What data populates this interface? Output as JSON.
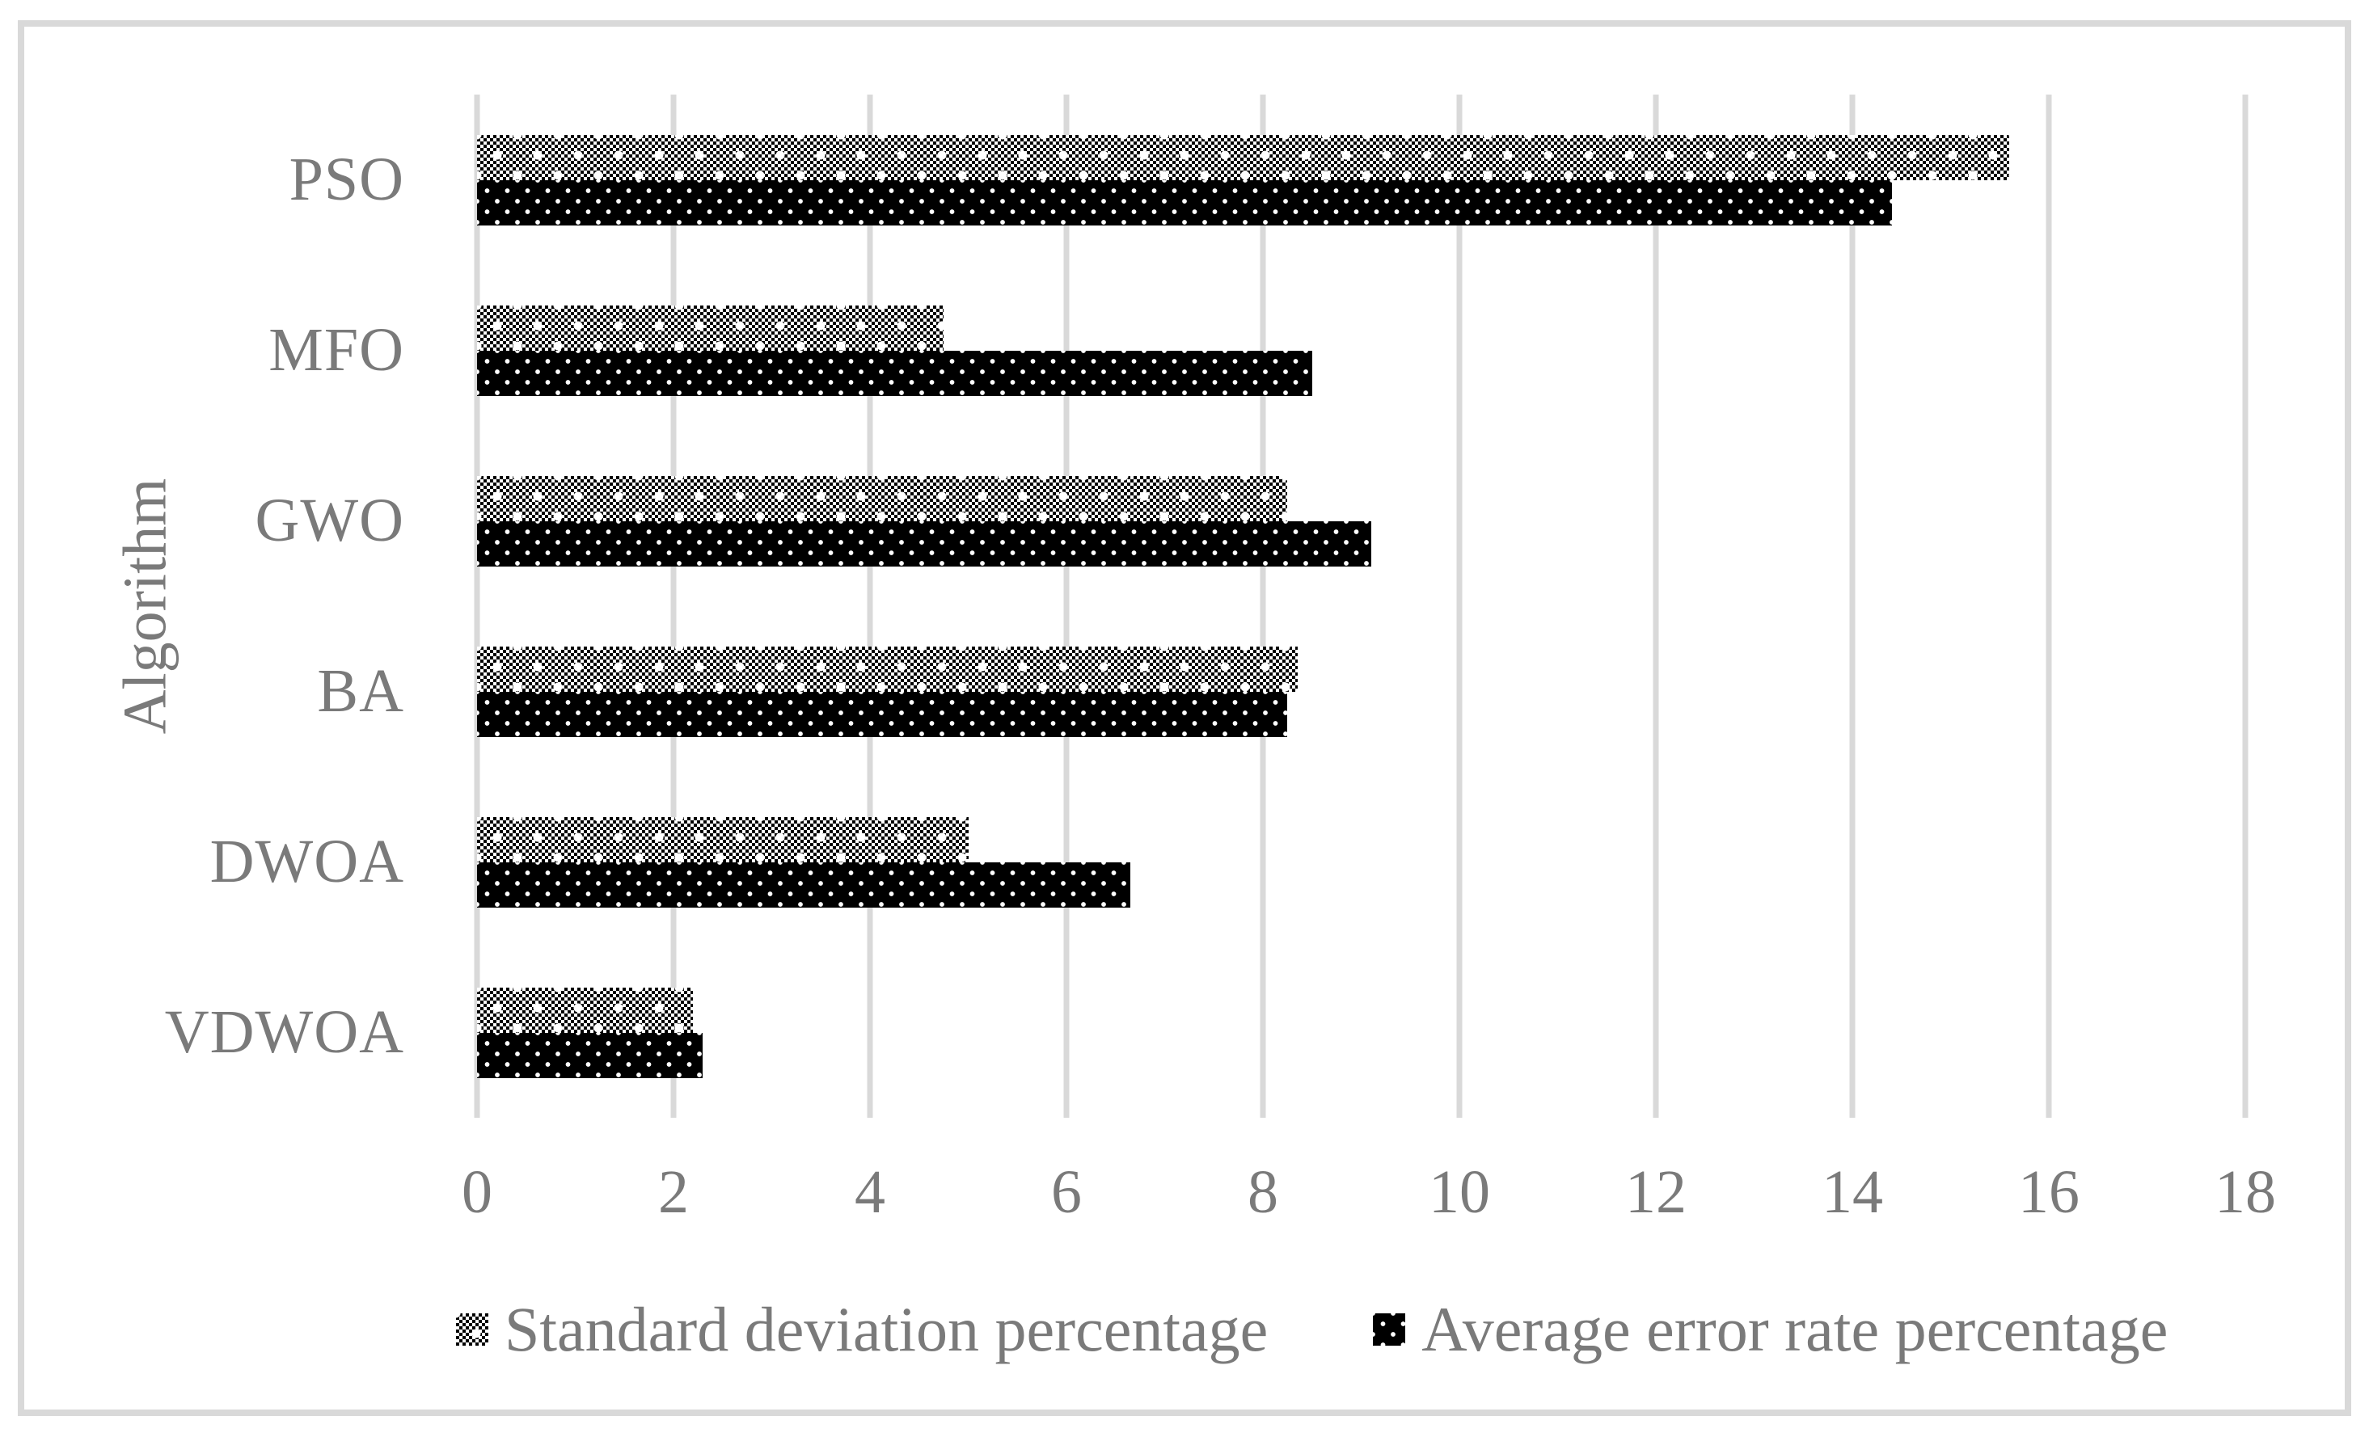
{
  "chart_data": {
    "type": "bar",
    "orientation": "horizontal",
    "title": "",
    "xlabel": "",
    "ylabel": "Algorithm",
    "categories": [
      "PSO",
      "MFO",
      "GWO",
      "BA",
      "DWOA",
      "VDWOA"
    ],
    "series": [
      {
        "name": "Standard deviation percentage",
        "pattern": "light-checkerboard",
        "values": [
          15.6,
          4.75,
          8.25,
          8.35,
          5.0,
          2.2
        ]
      },
      {
        "name": "Average error rate percentage",
        "pattern": "black-with-white-dots",
        "values": [
          14.4,
          8.5,
          9.1,
          8.25,
          6.65,
          2.3
        ]
      }
    ],
    "xlim": [
      0,
      18
    ],
    "xticks": [
      0,
      2,
      4,
      6,
      8,
      10,
      12,
      14,
      16,
      18
    ],
    "grid": "vertical-gridlines",
    "legend_position": "bottom"
  },
  "colors": {
    "text_gray": "#7a7a7a",
    "gridline_gray": "#d9d9d9",
    "frame_border_gray": "#d9d9d9",
    "bar_black": "#000000",
    "background": "#ffffff"
  }
}
